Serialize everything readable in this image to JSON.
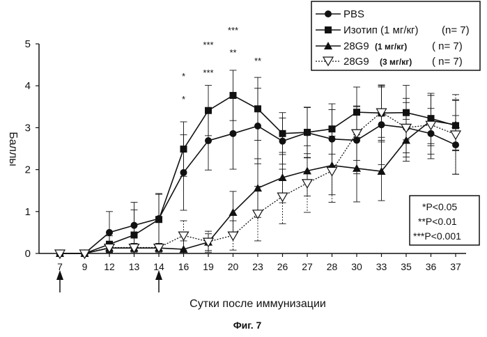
{
  "chart_data": {
    "type": "line",
    "xlabel": "Сутки после иммунизации",
    "ylabel": "Баллы",
    "caption": "Фиг. 7",
    "categories": [
      "7",
      "9",
      "12",
      "13",
      "14",
      "16",
      "19",
      "20",
      "23",
      "26",
      "27",
      "28",
      "30",
      "33",
      "35",
      "36",
      "37"
    ],
    "ylim": [
      0,
      5
    ],
    "yticks": [
      "0",
      "1",
      "2",
      "3",
      "4",
      "5"
    ],
    "series": [
      {
        "name": "PBS",
        "marker": "circle-filled",
        "line": "solid",
        "values": [
          0,
          0,
          0.5,
          0.67,
          0.83,
          1.93,
          2.69,
          2.86,
          3.04,
          2.68,
          2.88,
          2.73,
          2.7,
          3.07,
          3.0,
          2.86,
          2.59
        ],
        "errors": [
          0,
          0,
          0.5,
          0.55,
          0.6,
          0.9,
          0.7,
          0.85,
          0.9,
          0.55,
          0.6,
          0.7,
          0.8,
          0.95,
          0.7,
          0.6,
          0.7
        ]
      },
      {
        "name_main": "Изотип (1 мг/кг)",
        "name_n": "(n= 7)",
        "marker": "square-filled",
        "line": "solid",
        "values": [
          0,
          0,
          0.22,
          0.44,
          0.81,
          2.49,
          3.41,
          3.77,
          3.45,
          2.86,
          2.89,
          2.97,
          3.37,
          3.35,
          3.36,
          3.22,
          3.05
        ],
        "errors": [
          0,
          0,
          0.2,
          0.6,
          0.6,
          0.65,
          0.6,
          0.6,
          0.75,
          0.5,
          0.6,
          0.6,
          0.6,
          0.65,
          0.65,
          0.6,
          0.6
        ]
      },
      {
        "name_main": "28G9",
        "name_dose": "(1 мг/кг)",
        "name_n": "( n= 7)",
        "marker": "triangle-filled",
        "line": "solid",
        "values": [
          0,
          0,
          0.13,
          0.13,
          0.13,
          0.1,
          0.27,
          0.98,
          1.56,
          1.81,
          1.97,
          2.1,
          2.03,
          1.96,
          2.7,
          3.17,
          3.07
        ],
        "errors": [
          0,
          0,
          0.1,
          0.1,
          0.1,
          0.2,
          0.2,
          0.5,
          0.7,
          0.6,
          0.6,
          0.7,
          0.8,
          0.7,
          0.5,
          0.6,
          0.6
        ]
      },
      {
        "name_main": "28G9",
        "name_dose": "(3 мг/кг)",
        "name_n": "( n= 7)",
        "marker": "triangle-open-down",
        "line": "dotted",
        "values": [
          0,
          0,
          0.14,
          0.14,
          0.14,
          0.43,
          0.28,
          0.43,
          0.95,
          1.36,
          1.68,
          1.97,
          2.87,
          3.37,
          3.0,
          3.07,
          2.84
        ],
        "errors": [
          0,
          0,
          0.1,
          0.1,
          0.1,
          0.35,
          0.25,
          0.35,
          0.65,
          0.65,
          0.7,
          0.75,
          0.65,
          0.6,
          0.6,
          0.7,
          0.95
        ]
      }
    ],
    "significance": [
      {
        "x": "16",
        "upper": "*",
        "lower": "*"
      },
      {
        "x": "19",
        "upper": "***",
        "lower": "***"
      },
      {
        "x": "20",
        "upper": "***",
        "lower": "**"
      },
      {
        "x": "23",
        "upper": "",
        "lower": "**"
      }
    ],
    "arrows_at": [
      "7",
      "14"
    ],
    "pvalue_box": [
      "*P<0.05",
      "**P<0.01",
      "***P<0.001"
    ],
    "legend_position": "top-right",
    "grid": false
  }
}
